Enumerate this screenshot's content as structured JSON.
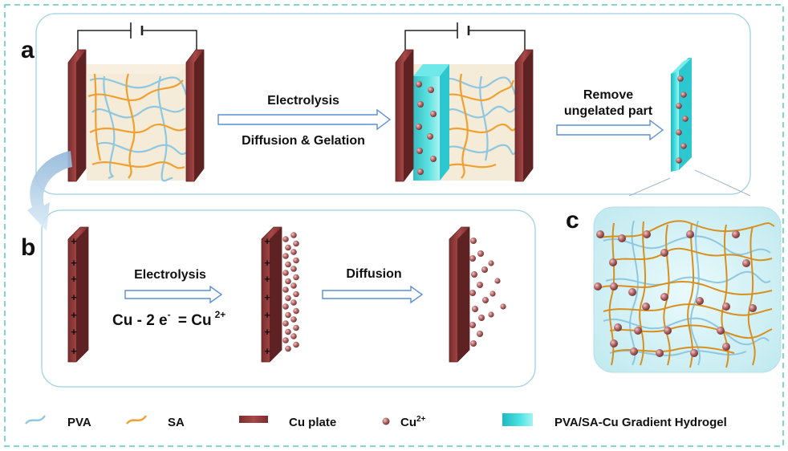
{
  "panels": {
    "a": {
      "letter": "a",
      "arrow1_top": "Electrolysis",
      "arrow1_bottom": "Diffusion & Gelation",
      "arrow2_line1": "Remove",
      "arrow2_line2": "ungelated part"
    },
    "b": {
      "letter": "b",
      "arrow1_label": "Electrolysis",
      "equation_main": "Cu - 2 e",
      "equation_minus": "-",
      "equation_eq": "= Cu",
      "equation_charge": "2+",
      "arrow2_label": "Diffusion",
      "plus_sign": "+"
    },
    "c": {
      "letter": "c"
    }
  },
  "legend": [
    {
      "key": "pva",
      "label": "PVA"
    },
    {
      "key": "sa",
      "label": "SA"
    },
    {
      "key": "cu_plate",
      "label": "Cu plate"
    },
    {
      "key": "cu_ion",
      "label": "Cu",
      "sup": "2+"
    },
    {
      "key": "hydrogel",
      "label": "PVA/SA-Cu Gradient Hydrogel"
    }
  ],
  "colors": {
    "pva": "#8ec8e0",
    "sa": "#f0a030",
    "cu_plate": "#8f3a3a",
    "cu_ion": "#9c5a5a",
    "hydrogel": "#3fd6d8",
    "panel_border": "#9fd0e6",
    "frame_border": "#5cc6c0",
    "arrow": "#5b8fd6"
  }
}
